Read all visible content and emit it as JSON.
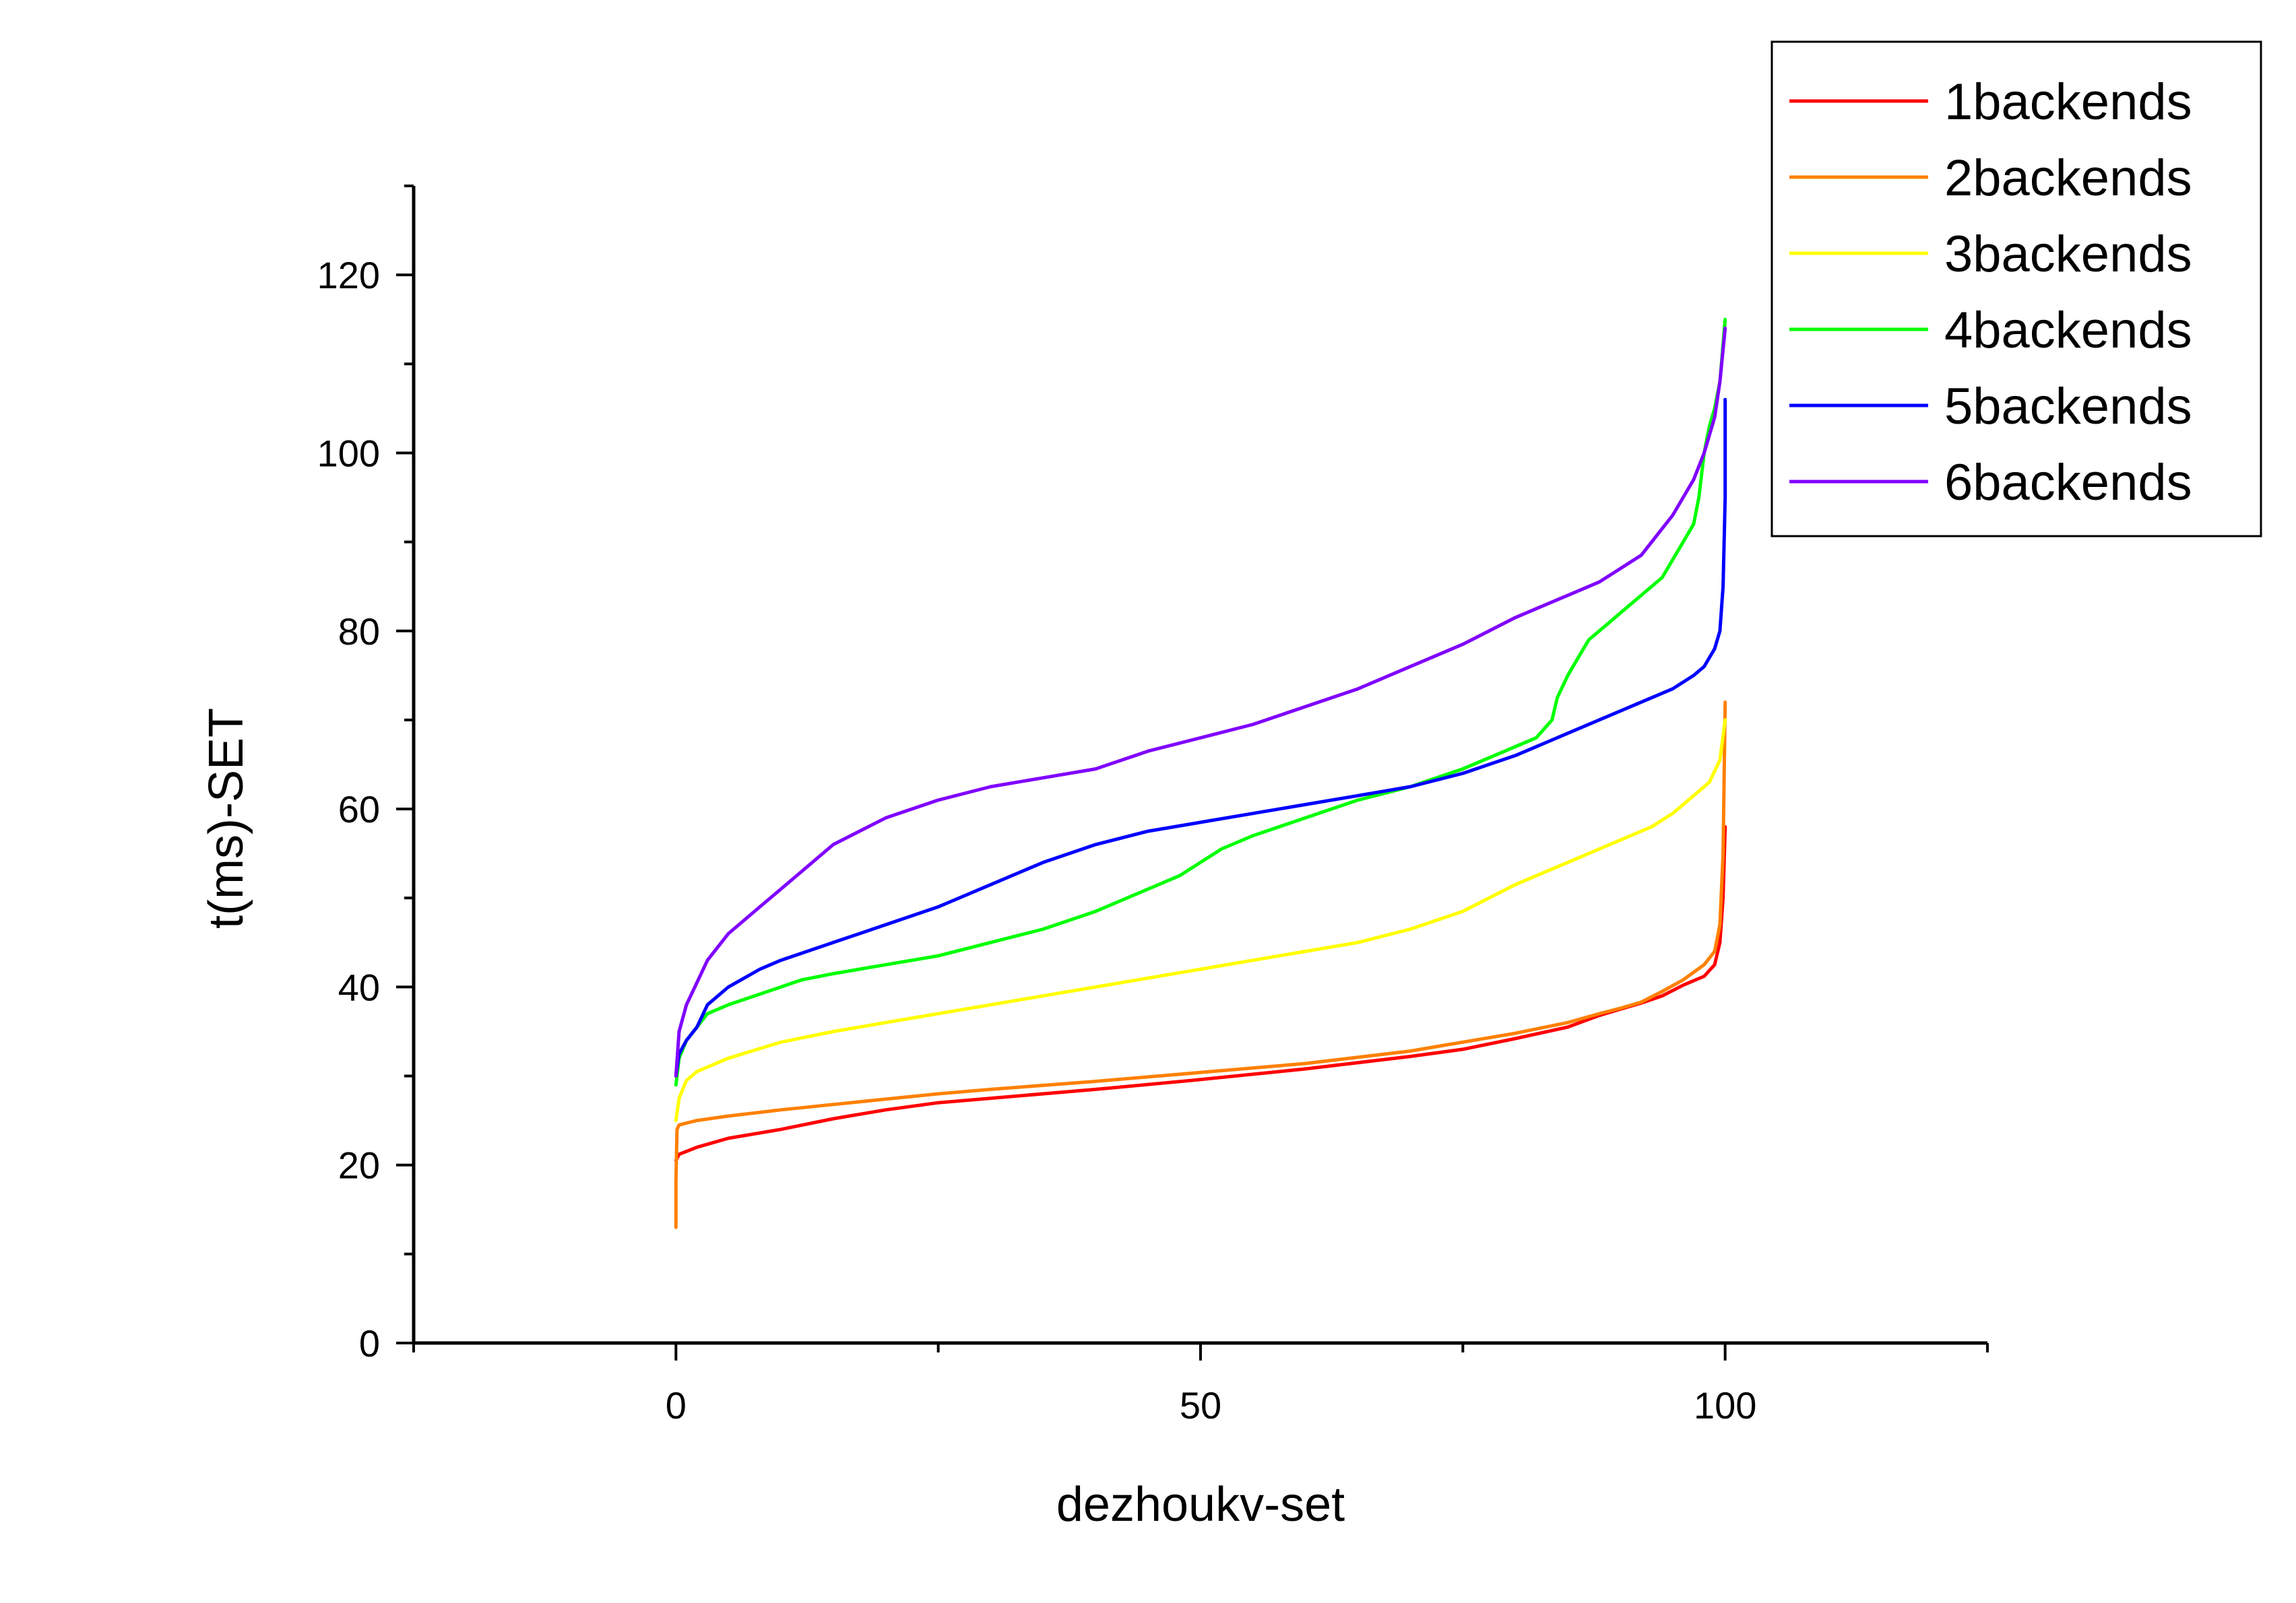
{
  "chart_data": {
    "type": "line",
    "title": "",
    "xlabel": "dezhoukv-set",
    "ylabel": "t(ms)-SET",
    "xlim": [
      -25,
      125
    ],
    "ylim": [
      0,
      130
    ],
    "x_ticks": [
      0,
      50,
      100
    ],
    "y_ticks": [
      0,
      20,
      40,
      60,
      80,
      100,
      120
    ],
    "x_tick_labels": [
      "0",
      "50",
      "100"
    ],
    "y_tick_labels": [
      "0",
      "20",
      "40",
      "60",
      "80",
      "100",
      "120"
    ],
    "grid": false,
    "legend_position": "top-right",
    "series": [
      {
        "name": "1backends",
        "color": "#ff0000",
        "x": [
          0,
          0.3,
          2,
          5,
          10,
          15,
          20,
          25,
          30,
          40,
          50,
          60,
          70,
          75,
          80,
          85,
          88,
          90,
          92,
          94,
          96,
          98,
          99,
          99.5,
          99.8,
          100
        ],
        "y": [
          20.5,
          21.2,
          22,
          23,
          24,
          25.2,
          26.2,
          27,
          27.5,
          28.5,
          29.6,
          30.8,
          32.2,
          33,
          34.2,
          35.5,
          36.8,
          37.5,
          38.2,
          39,
          40.2,
          41.2,
          42.5,
          45,
          50,
          58
        ]
      },
      {
        "name": "2backends",
        "color": "#ff8000",
        "x": [
          0,
          0,
          0.1,
          0.3,
          2,
          5,
          10,
          15,
          20,
          25,
          30,
          40,
          50,
          60,
          70,
          75,
          80,
          85,
          88,
          90,
          92,
          94,
          96,
          98,
          99,
          99.5,
          99.8,
          100
        ],
        "y": [
          13,
          18,
          24,
          24.5,
          25,
          25.5,
          26.2,
          26.8,
          27.4,
          28,
          28.5,
          29.4,
          30.4,
          31.4,
          32.8,
          33.8,
          34.8,
          36,
          37,
          37.6,
          38.3,
          39.5,
          40.8,
          42.5,
          44,
          47,
          55,
          72
        ]
      },
      {
        "name": "3backends",
        "color": "#ffff00",
        "x": [
          0,
          0.3,
          1,
          2,
          5,
          10,
          15,
          20,
          30,
          40,
          50,
          60,
          65,
          70,
          75,
          80,
          85,
          90,
          93,
          95,
          97,
          98.5,
          99.5,
          100
        ],
        "y": [
          25,
          27.5,
          29.5,
          30.5,
          32,
          33.8,
          35,
          36,
          38,
          40,
          42,
          44,
          45,
          46.5,
          48.5,
          51.5,
          54,
          56.5,
          58,
          59.5,
          61.5,
          63,
          65.5,
          70
        ]
      },
      {
        "name": "4backends",
        "color": "#00ff00",
        "x": [
          0,
          0.3,
          1,
          2,
          3,
          5,
          8,
          10,
          12,
          15,
          20,
          25,
          30,
          35,
          40,
          45,
          48,
          50,
          52,
          55,
          60,
          65,
          70,
          75,
          78,
          80,
          82,
          83.5,
          84,
          85,
          86,
          87,
          88,
          89,
          90,
          92,
          94,
          95,
          96,
          97,
          97.5,
          98,
          98.5,
          99,
          99.5,
          100
        ],
        "y": [
          29,
          32,
          34,
          35.5,
          37,
          38,
          39.2,
          40,
          40.8,
          41.5,
          42.5,
          43.5,
          45,
          46.5,
          48.5,
          51,
          52.5,
          54,
          55.5,
          57,
          59,
          61,
          62.5,
          64.5,
          66,
          67,
          68,
          70,
          72.5,
          75,
          77,
          79,
          80,
          81,
          82,
          84,
          86,
          88,
          90,
          92,
          95,
          100,
          103,
          105,
          108,
          115
        ]
      },
      {
        "name": "5backends",
        "color": "#0000ff",
        "x": [
          0,
          0.3,
          1,
          2,
          3,
          5,
          8,
          10,
          15,
          20,
          25,
          30,
          35,
          40,
          45,
          50,
          55,
          60,
          65,
          70,
          75,
          80,
          85,
          90,
          95,
          97,
          98,
          99,
          99.5,
          99.8,
          100,
          100
        ],
        "y": [
          30,
          32.5,
          34,
          35.5,
          38,
          40,
          42,
          43,
          45,
          47,
          49,
          51.5,
          54,
          56,
          57.5,
          58.5,
          59.5,
          60.5,
          61.5,
          62.5,
          64,
          66,
          68.5,
          71,
          73.5,
          75,
          76,
          78,
          80,
          85,
          95,
          106
        ]
      },
      {
        "name": "6backends",
        "color": "#8000ff",
        "x": [
          0,
          0.3,
          1,
          2,
          3,
          5,
          8,
          10,
          12,
          15,
          20,
          25,
          30,
          35,
          40,
          45,
          50,
          55,
          60,
          65,
          70,
          75,
          80,
          85,
          88,
          90,
          92,
          93,
          94,
          95,
          96,
          97,
          97.5,
          98,
          98.5,
          99,
          99.5,
          100
        ],
        "y": [
          30,
          35,
          38,
          40.5,
          43,
          46,
          49,
          51,
          53,
          56,
          59,
          61,
          62.5,
          63.5,
          64.5,
          66.5,
          68,
          69.5,
          71.5,
          73.5,
          76,
          78.5,
          81.5,
          84,
          85.5,
          87,
          88.5,
          90,
          91.5,
          93,
          95,
          97,
          98.5,
          100,
          102,
          104,
          108,
          114
        ]
      }
    ]
  }
}
